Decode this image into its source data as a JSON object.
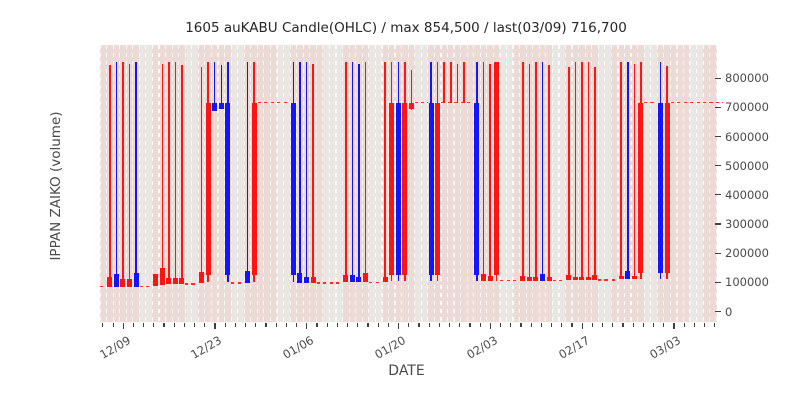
{
  "figure": {
    "title": "1605 auKABU Candle(OHLC) / max 854,500 / last(03/09) 716,700",
    "xlabel": "DATE",
    "ylabel": "IPPAN ZAIKO (volume)"
  },
  "colors": {
    "up_down_red": "#ff1414",
    "up_down_blue": "#1414ff",
    "dash_line_red": "#ff2a2a",
    "band_pink": "#ecdad6",
    "band_gray": "#e9e6e3",
    "gridline_white": "rgba(255,255,255,0.85)",
    "text_dark": "#262626",
    "text_gray": "#4a4a4a"
  },
  "chart_data": {
    "type": "candlestick-ohlc",
    "title": "1605 auKABU Candle(OHLC) / max 854,500 / last(03/09) 716,700",
    "symbol": "1605",
    "source_label": "auKABU",
    "max_value": 854500,
    "last_date": "03/09",
    "last_value": 716700,
    "xlabel": "DATE",
    "ylabel": "IPPAN ZAIKO (volume)",
    "x_tick_labels": [
      "12/09",
      "12/23",
      "01/06",
      "01/20",
      "02/03",
      "02/17",
      "03/03"
    ],
    "y_ticks": [
      0,
      100000,
      200000,
      300000,
      400000,
      500000,
      600000,
      700000,
      800000
    ],
    "ylim": [
      -36000,
      914000
    ],
    "grid": "vertical-white-dashed-per-day",
    "legend": "days: band p=pink trading-day column, g=gray weekend/holiday column; candle: color r=red b=blue, high/low = wick extent, bt/bb = body top/bottom; dash = flat red dashed close-level segment",
    "days": [
      {
        "band": "p",
        "dash": 85000
      },
      {
        "band": "p",
        "color": "r",
        "high": 845000,
        "low": 85000,
        "bt": 118000,
        "bb": 85000
      },
      {
        "band": "p",
        "color": "b",
        "high": 854500,
        "low": 85000,
        "bt": 128000,
        "bb": 85000
      },
      {
        "band": "p",
        "color": "r",
        "high": 854500,
        "low": 85000,
        "bt": 110000,
        "bb": 85000
      },
      {
        "band": "p",
        "color": "r",
        "high": 850000,
        "low": 85000,
        "bt": 110000,
        "bb": 85000
      },
      {
        "band": "p",
        "color": "b",
        "high": 854500,
        "low": 85000,
        "bt": 132000,
        "bb": 85000
      },
      {
        "band": "g",
        "dash": 85000
      },
      {
        "band": "g",
        "dash": 85000
      },
      {
        "band": "p",
        "color": "r",
        "high": 128000,
        "low": 88000,
        "bt": 128000,
        "bb": 88000
      },
      {
        "band": "p",
        "color": "r",
        "high": 848000,
        "low": 92000,
        "bt": 148000,
        "bb": 92000
      },
      {
        "band": "p",
        "color": "r",
        "high": 854500,
        "low": 95000,
        "bt": 115000,
        "bb": 95000
      },
      {
        "band": "p",
        "color": "r",
        "high": 854500,
        "low": 95000,
        "bt": 115000,
        "bb": 95000
      },
      {
        "band": "p",
        "color": "r",
        "high": 846000,
        "low": 95000,
        "bt": 115000,
        "bb": 95000
      },
      {
        "band": "g",
        "dash": 95000
      },
      {
        "band": "g",
        "dash": 95000
      },
      {
        "band": "p",
        "color": "r",
        "high": 840000,
        "low": 98000,
        "bt": 135000,
        "bb": 98000
      },
      {
        "band": "p",
        "color": "r",
        "high": 854500,
        "low": 102000,
        "bt": 716700,
        "bb": 126000
      },
      {
        "band": "p",
        "color": "b",
        "high": 854500,
        "low": 688000,
        "bt": 716700,
        "bb": 688000
      },
      {
        "band": "p",
        "color": "b",
        "high": 846000,
        "low": 694000,
        "bt": 716700,
        "bb": 694000
      },
      {
        "band": "p",
        "color": "b",
        "high": 854500,
        "low": 102000,
        "bt": 716700,
        "bb": 126000
      },
      {
        "band": "g",
        "dash": 98000
      },
      {
        "band": "g",
        "dash": 98000
      },
      {
        "band": "p",
        "color": "b",
        "high": 854500,
        "low": 98000,
        "bt": 138000,
        "bb": 98000
      },
      {
        "band": "p",
        "color": "r",
        "high": 854500,
        "low": 102000,
        "bt": 716700,
        "bb": 126000
      },
      {
        "band": "p",
        "dash": 716700
      },
      {
        "band": "p",
        "dash": 716700
      },
      {
        "band": "p",
        "dash": 716700
      },
      {
        "band": "g",
        "dash": 716700
      },
      {
        "band": "g",
        "dash": 716700
      },
      {
        "band": "p",
        "color": "b",
        "high": 854500,
        "low": 102000,
        "bt": 716700,
        "bb": 126000
      },
      {
        "band": "p",
        "color": "b",
        "high": 854500,
        "low": 98000,
        "bt": 132000,
        "bb": 98000
      },
      {
        "band": "p",
        "color": "b",
        "high": 854500,
        "low": 98000,
        "bt": 118000,
        "bb": 98000
      },
      {
        "band": "p",
        "color": "r",
        "high": 848000,
        "low": 98000,
        "bt": 118000,
        "bb": 98000
      },
      {
        "band": "p",
        "dash": 98000
      },
      {
        "band": "g",
        "dash": 98000
      },
      {
        "band": "g",
        "dash": 98000
      },
      {
        "band": "g",
        "dash": 98000
      },
      {
        "band": "p",
        "color": "r",
        "high": 854500,
        "low": 100000,
        "bt": 124000,
        "bb": 100000
      },
      {
        "band": "p",
        "color": "b",
        "high": 854500,
        "low": 100000,
        "bt": 124000,
        "bb": 100000
      },
      {
        "band": "p",
        "color": "b",
        "high": 848000,
        "low": 100000,
        "bt": 118000,
        "bb": 100000
      },
      {
        "band": "p",
        "color": "r",
        "high": 854500,
        "low": 100000,
        "bt": 133000,
        "bb": 100000
      },
      {
        "band": "g",
        "dash": 100000
      },
      {
        "band": "g",
        "dash": 100000
      },
      {
        "band": "p",
        "color": "r",
        "high": 854500,
        "low": 100000,
        "bt": 119000,
        "bb": 100000
      },
      {
        "band": "p",
        "color": "r",
        "high": 854500,
        "low": 103000,
        "bt": 716700,
        "bb": 126000
      },
      {
        "band": "p",
        "color": "b",
        "high": 854500,
        "low": 103000,
        "bt": 716700,
        "bb": 126000
      },
      {
        "band": "p",
        "color": "r",
        "high": 854500,
        "low": 103000,
        "bt": 716700,
        "bb": 126000
      },
      {
        "band": "p",
        "color": "r",
        "high": 828000,
        "low": 692000,
        "bt": 716700,
        "bb": 695000
      },
      {
        "band": "g",
        "dash": 716700
      },
      {
        "band": "g",
        "dash": 716700
      },
      {
        "band": "p",
        "color": "b",
        "high": 854500,
        "low": 104000,
        "bt": 716700,
        "bb": 126000
      },
      {
        "band": "p",
        "color": "r",
        "high": 854500,
        "low": 104000,
        "bt": 716700,
        "bb": 126000
      },
      {
        "band": "p",
        "color": "r",
        "high": 854500,
        "low": 716700,
        "dash": 716700
      },
      {
        "band": "p",
        "color": "r",
        "high": 854500,
        "low": 716700,
        "dash": 716700
      },
      {
        "band": "p",
        "color": "r",
        "high": 848000,
        "low": 716700,
        "dash": 716700
      },
      {
        "band": "p",
        "color": "r",
        "high": 854500,
        "low": 716700,
        "dash": 716700
      },
      {
        "band": "p",
        "dash": 716700
      },
      {
        "band": "p",
        "color": "b",
        "high": 854500,
        "low": 106000,
        "bt": 716700,
        "bb": 126000
      },
      {
        "band": "p",
        "color": "r",
        "high": 854500,
        "low": 104000,
        "bt": 128000,
        "bb": 104000
      },
      {
        "band": "p",
        "color": "r",
        "high": 848000,
        "low": 104000,
        "bt": 122000,
        "bb": 104000
      },
      {
        "band": "p",
        "color": "r",
        "high": 854500,
        "low": 104000,
        "bt": 854500,
        "bb": 126000
      },
      {
        "band": "g",
        "dash": 106000
      },
      {
        "band": "g",
        "dash": 106000
      },
      {
        "band": "p",
        "dash": 106000
      },
      {
        "band": "p",
        "color": "r",
        "high": 854500,
        "low": 106000,
        "bt": 123000,
        "bb": 106000
      },
      {
        "band": "p",
        "color": "r",
        "high": 848000,
        "low": 106000,
        "bt": 118000,
        "bb": 106000
      },
      {
        "band": "p",
        "color": "r",
        "high": 854500,
        "low": 106000,
        "bt": 118000,
        "bb": 106000
      },
      {
        "band": "p",
        "color": "b",
        "high": 854500,
        "low": 106000,
        "bt": 128000,
        "bb": 106000
      },
      {
        "band": "p",
        "color": "r",
        "high": 846000,
        "low": 106000,
        "bt": 118000,
        "bb": 106000
      },
      {
        "band": "g",
        "dash": 106000
      },
      {
        "band": "g",
        "dash": 106000
      },
      {
        "band": "p",
        "color": "r",
        "high": 838000,
        "low": 108000,
        "bt": 126000,
        "bb": 108000
      },
      {
        "band": "p",
        "color": "r",
        "high": 854500,
        "low": 108000,
        "bt": 120000,
        "bb": 108000
      },
      {
        "band": "p",
        "color": "r",
        "high": 854500,
        "low": 108000,
        "bt": 120000,
        "bb": 108000
      },
      {
        "band": "p",
        "color": "r",
        "high": 854500,
        "low": 108000,
        "bt": 120000,
        "bb": 108000
      },
      {
        "band": "p",
        "color": "r",
        "high": 840000,
        "low": 108000,
        "bt": 126000,
        "bb": 108000
      },
      {
        "band": "g",
        "dash": 108000
      },
      {
        "band": "g",
        "dash": 108000
      },
      {
        "band": "p",
        "dash": 108000
      },
      {
        "band": "p",
        "color": "r",
        "high": 854500,
        "low": 110000,
        "bt": 121000,
        "bb": 110000
      },
      {
        "band": "p",
        "color": "b",
        "high": 854500,
        "low": 110000,
        "bt": 138000,
        "bb": 110000
      },
      {
        "band": "p",
        "color": "r",
        "high": 848000,
        "low": 110000,
        "bt": 123000,
        "bb": 110000
      },
      {
        "band": "p",
        "color": "r",
        "high": 854500,
        "low": 112000,
        "bt": 716700,
        "bb": 133000
      },
      {
        "band": "g",
        "dash": 716700
      },
      {
        "band": "g",
        "dash": 716700
      },
      {
        "band": "p",
        "color": "b",
        "high": 854500,
        "low": 112000,
        "bt": 716700,
        "bb": 133000
      },
      {
        "band": "p",
        "color": "r",
        "high": 843000,
        "low": 112000,
        "bt": 716700,
        "bb": 133000
      },
      {
        "band": "p",
        "dash": 716700
      },
      {
        "band": "p",
        "dash": 716700
      },
      {
        "band": "p",
        "dash": 716700
      },
      {
        "band": "g",
        "dash": 716700
      },
      {
        "band": "g",
        "dash": 716700
      },
      {
        "band": "p",
        "dash": 716700
      },
      {
        "band": "p",
        "dash": 716700
      }
    ]
  }
}
